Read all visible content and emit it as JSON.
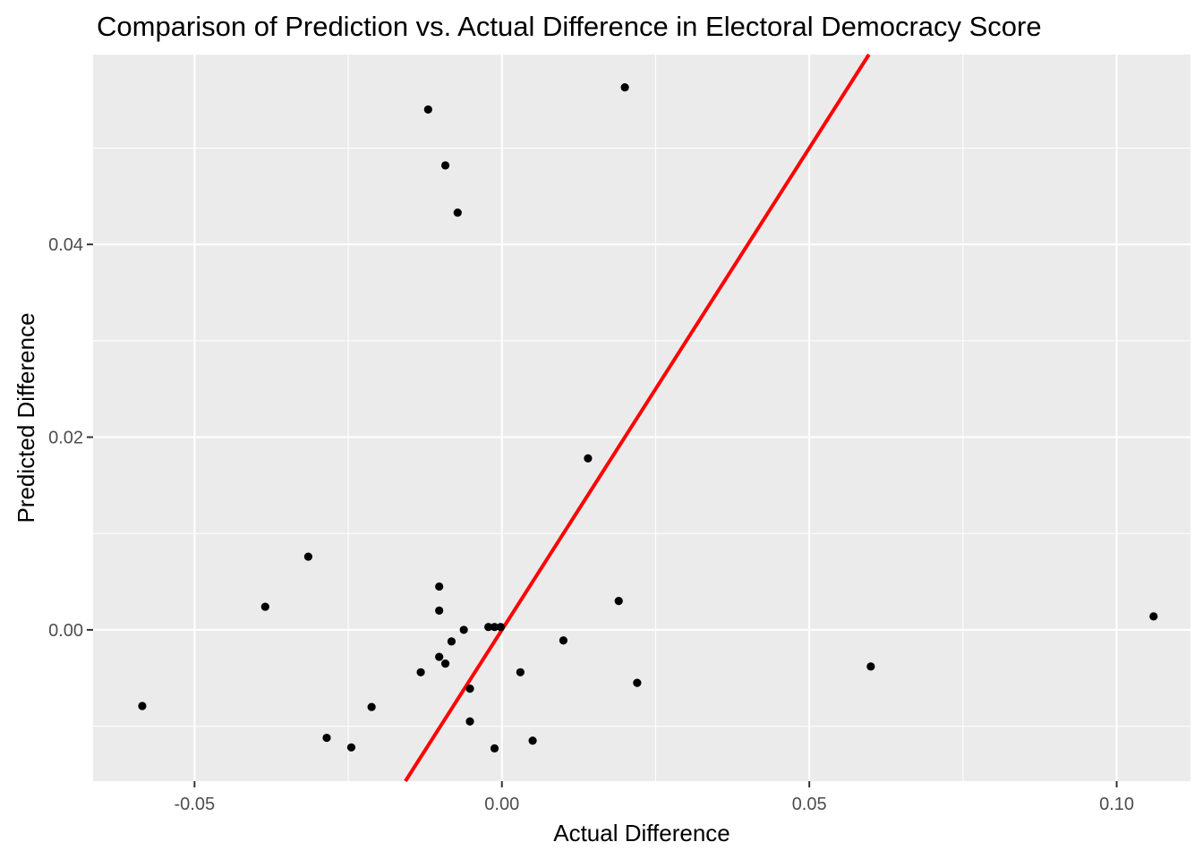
{
  "chart_data": {
    "type": "scatter",
    "title": "Comparison of Prediction vs. Actual Difference in Electoral Democracy Score",
    "xlabel": "Actual Difference",
    "ylabel": "Predicted Difference",
    "xlim": [
      -0.0665,
      0.112
    ],
    "ylim": [
      -0.0157,
      0.0597
    ],
    "x_ticks": [
      -0.05,
      0.0,
      0.05,
      0.1
    ],
    "x_tick_labels": [
      "-0.05",
      "0.00",
      "0.05",
      "0.10"
    ],
    "y_ticks": [
      0.0,
      0.02,
      0.04
    ],
    "y_tick_labels": [
      "0.00",
      "0.02",
      "0.04"
    ],
    "grid": true,
    "legend": "none",
    "background_color": "#EBEBEB",
    "grid_color": "#FFFFFF",
    "point_color": "#000000",
    "reference_line": {
      "slope": 1,
      "intercept": 0,
      "color": "#FF0000"
    },
    "series": [
      {
        "x": [
          0.02,
          -0.012,
          -0.0092,
          -0.0072,
          0.014,
          -0.0315,
          -0.0385,
          -0.0102,
          -0.0102,
          0.019,
          -0.0062,
          -0.0022,
          -0.0012,
          -0.0002,
          -0.0082,
          0.01,
          -0.0102,
          -0.0092,
          -0.0132,
          0.003,
          0.022,
          -0.0052,
          -0.0212,
          0.06,
          0.106,
          -0.0585,
          -0.0052,
          -0.0285,
          0.005,
          -0.0245,
          -0.0012
        ],
        "y": [
          0.0563,
          0.054,
          0.0482,
          0.0433,
          0.0178,
          0.0076,
          0.0024,
          0.0045,
          0.002,
          0.003,
          0.0,
          0.0003,
          0.0003,
          0.0003,
          -0.0012,
          -0.0011,
          -0.0028,
          -0.0035,
          -0.0044,
          -0.0044,
          -0.0055,
          -0.0061,
          -0.008,
          -0.0038,
          0.0014,
          -0.0079,
          -0.0095,
          -0.0112,
          -0.0115,
          -0.0122,
          -0.0123
        ]
      }
    ]
  }
}
